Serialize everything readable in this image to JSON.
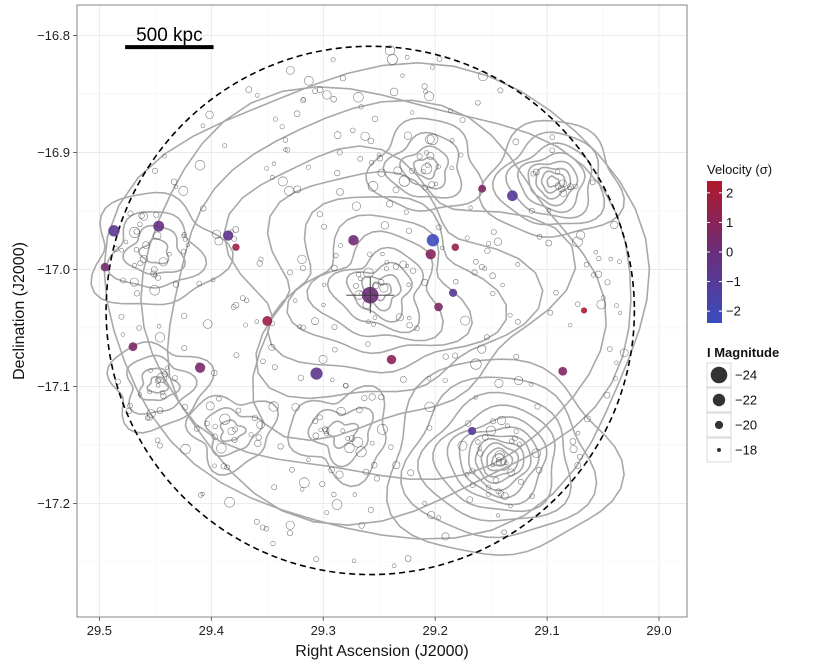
{
  "chart_data": {
    "type": "scatter",
    "xlabel": "Right Ascension (J2000)",
    "ylabel": "Declination (J2000)",
    "xlim": [
      29.52,
      28.975
    ],
    "ylim": [
      -17.297,
      -16.774
    ],
    "x_reversed": true,
    "x_ticks": [
      29.5,
      29.4,
      29.3,
      29.2,
      29.1,
      29.0
    ],
    "x_tick_labels": [
      "29.5",
      "29.4",
      "29.3",
      "29.2",
      "29.1",
      "29.0"
    ],
    "y_ticks": [
      -16.8,
      -16.9,
      -17.0,
      -17.1,
      -17.2
    ],
    "y_tick_labels": [
      "−16.8",
      "−16.9",
      "−17.0",
      "−17.1",
      "−17.2"
    ],
    "grid": true,
    "scale_bar": {
      "label": "500 kpc",
      "ra_start": 29.477,
      "ra_end": 29.398,
      "dec": -16.81
    },
    "aperture_circle": {
      "center_ra": 29.258,
      "center_dec": -17.035,
      "radius_ra": 0.236,
      "radius_dec": 0.238,
      "style": "dashed"
    },
    "central_galaxy": {
      "ra": 29.258,
      "dec": -17.022
    },
    "velocity_legend": {
      "title": "Velocity (σ)",
      "ticks": [
        2,
        1,
        0,
        -1,
        -2
      ],
      "tick_labels": [
        "2",
        "1",
        "0",
        "−1",
        "−2"
      ],
      "range": [
        -2.4,
        2.4
      ],
      "color_high": "#b2182b",
      "color_mid": "#6a2d7a",
      "color_low": "#3b4cc0"
    },
    "magnitude_legend": {
      "title": "I Magnitude",
      "values": [
        -24,
        -22,
        -20,
        -18
      ],
      "labels": [
        "−24",
        "−22",
        "−20",
        "−18"
      ]
    },
    "member_galaxies": [
      {
        "ra": 29.487,
        "dec": -16.967,
        "velocity": -0.8,
        "mag": -21.5
      },
      {
        "ra": 29.447,
        "dec": -16.963,
        "velocity": -0.2,
        "mag": -21.3
      },
      {
        "ra": 29.495,
        "dec": -16.998,
        "velocity": 0.3,
        "mag": -20.2
      },
      {
        "ra": 29.385,
        "dec": -16.971,
        "velocity": -0.5,
        "mag": -21.0
      },
      {
        "ra": 29.378,
        "dec": -16.981,
        "velocity": 1.6,
        "mag": -19.6
      },
      {
        "ra": 29.273,
        "dec": -16.975,
        "velocity": 0.2,
        "mag": -21.1
      },
      {
        "ra": 29.258,
        "dec": -17.022,
        "velocity": 0.1,
        "mag": -24.0
      },
      {
        "ra": 29.35,
        "dec": -17.044,
        "velocity": 1.6,
        "mag": -20.8
      },
      {
        "ra": 29.202,
        "dec": -16.975,
        "velocity": -2.3,
        "mag": -22.0
      },
      {
        "ra": 29.204,
        "dec": -16.987,
        "velocity": 0.9,
        "mag": -21.0
      },
      {
        "ra": 29.182,
        "dec": -16.981,
        "velocity": 1.4,
        "mag": -19.7
      },
      {
        "ra": 29.197,
        "dec": -17.032,
        "velocity": 0.6,
        "mag": -20.2
      },
      {
        "ra": 29.184,
        "dec": -17.02,
        "velocity": -0.9,
        "mag": -20.0
      },
      {
        "ra": 29.158,
        "dec": -16.931,
        "velocity": 0.7,
        "mag": -19.9
      },
      {
        "ra": 29.131,
        "dec": -16.937,
        "velocity": -1.0,
        "mag": -21.2
      },
      {
        "ra": 29.47,
        "dec": -17.066,
        "velocity": 0.6,
        "mag": -20.3
      },
      {
        "ra": 29.41,
        "dec": -17.084,
        "velocity": 0.5,
        "mag": -21.0
      },
      {
        "ra": 29.306,
        "dec": -17.089,
        "velocity": -0.6,
        "mag": -21.9
      },
      {
        "ra": 29.239,
        "dec": -17.077,
        "velocity": 1.1,
        "mag": -20.6
      },
      {
        "ra": 29.067,
        "dec": -17.035,
        "velocity": 2.2,
        "mag": -19.0
      },
      {
        "ra": 29.086,
        "dec": -17.087,
        "velocity": 0.7,
        "mag": -20.3
      },
      {
        "ra": 29.167,
        "dec": -17.138,
        "velocity": -1.0,
        "mag": -20.0
      }
    ],
    "contour_centers": [
      {
        "ra": 29.143,
        "dec": -17.163
      },
      {
        "ra": 29.095,
        "dec": -16.925
      },
      {
        "ra": 29.248,
        "dec": -17.018
      },
      {
        "ra": 29.208,
        "dec": -16.913
      },
      {
        "ra": 29.45,
        "dec": -16.985
      },
      {
        "ra": 29.448,
        "dec": -17.099
      },
      {
        "ra": 29.382,
        "dec": -17.138
      },
      {
        "ra": 29.283,
        "dec": -17.14
      }
    ]
  }
}
